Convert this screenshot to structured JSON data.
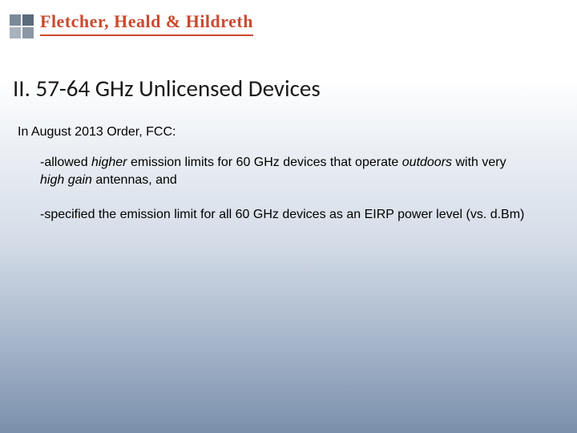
{
  "header": {
    "firm_name": "Fletcher, Heald & Hildreth"
  },
  "slide": {
    "title": "II.  57-64 GHz Unlicensed Devices",
    "intro": "In August 2013 Order, FCC:",
    "bullets": [
      {
        "prefix": "-allowed ",
        "em1": "higher",
        "mid1": " emission limits for 60 GHz devices that operate ",
        "em2": "outdoors",
        "mid2": " with very ",
        "em3": "high gain",
        "suffix": " antennas, and"
      },
      {
        "prefix": "-specified the emission limit for all 60 GHz devices as an EIRP power level (vs. d.Bm)",
        "em1": "",
        "mid1": "",
        "em2": "",
        "mid2": "",
        "em3": "",
        "suffix": ""
      }
    ]
  },
  "colors": {
    "brand": "#c94a2f",
    "logo_squares": [
      "#7b8a99",
      "#5a6b7c",
      "#a8b2bd",
      "#8b97a5"
    ]
  }
}
